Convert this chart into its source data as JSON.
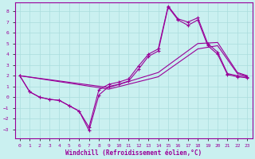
{
  "xlabel": "Windchill (Refroidissement éolien,°C)",
  "bg_color": "#caf0f0",
  "line_color": "#990099",
  "grid_color": "#aadddd",
  "xlim": [
    -0.5,
    23.5
  ],
  "ylim": [
    -3.8,
    8.8
  ],
  "xticks": [
    0,
    1,
    2,
    3,
    4,
    5,
    6,
    7,
    8,
    9,
    10,
    11,
    12,
    13,
    14,
    15,
    16,
    17,
    18,
    19,
    20,
    21,
    22,
    23
  ],
  "yticks": [
    -3,
    -2,
    -1,
    0,
    1,
    2,
    3,
    4,
    5,
    6,
    7,
    8
  ],
  "line1_x": [
    0,
    1,
    2,
    3,
    4,
    5,
    6,
    7,
    8,
    9,
    10,
    11,
    12,
    13,
    14,
    15,
    16,
    17,
    18,
    19,
    20,
    21,
    22,
    23
  ],
  "line1_y": [
    2.0,
    0.5,
    0.0,
    -0.2,
    -0.3,
    -0.8,
    -1.3,
    -2.8,
    0.7,
    1.2,
    1.4,
    1.7,
    2.9,
    4.0,
    4.5,
    8.5,
    7.3,
    7.0,
    7.4,
    5.0,
    4.2,
    2.2,
    2.0,
    1.9
  ],
  "line2_x": [
    0,
    1,
    2,
    3,
    4,
    5,
    6,
    7,
    8,
    9,
    10,
    11,
    12,
    13,
    14,
    15,
    16,
    17,
    18,
    19,
    20,
    21,
    22,
    23
  ],
  "line2_y": [
    2.0,
    0.5,
    0.0,
    -0.2,
    -0.3,
    -0.8,
    -1.3,
    -3.1,
    0.2,
    1.0,
    1.2,
    1.5,
    2.6,
    3.8,
    4.3,
    8.4,
    7.2,
    6.7,
    7.2,
    4.8,
    4.0,
    2.1,
    1.9,
    1.8
  ],
  "line3_x": [
    0,
    9,
    14,
    18,
    20,
    22,
    23
  ],
  "line3_y": [
    2.0,
    0.9,
    2.3,
    5.0,
    5.1,
    2.3,
    2.0
  ],
  "line4_x": [
    0,
    9,
    14,
    18,
    20,
    22,
    23
  ],
  "line4_y": [
    2.0,
    0.75,
    1.9,
    4.5,
    4.8,
    2.2,
    1.95
  ]
}
